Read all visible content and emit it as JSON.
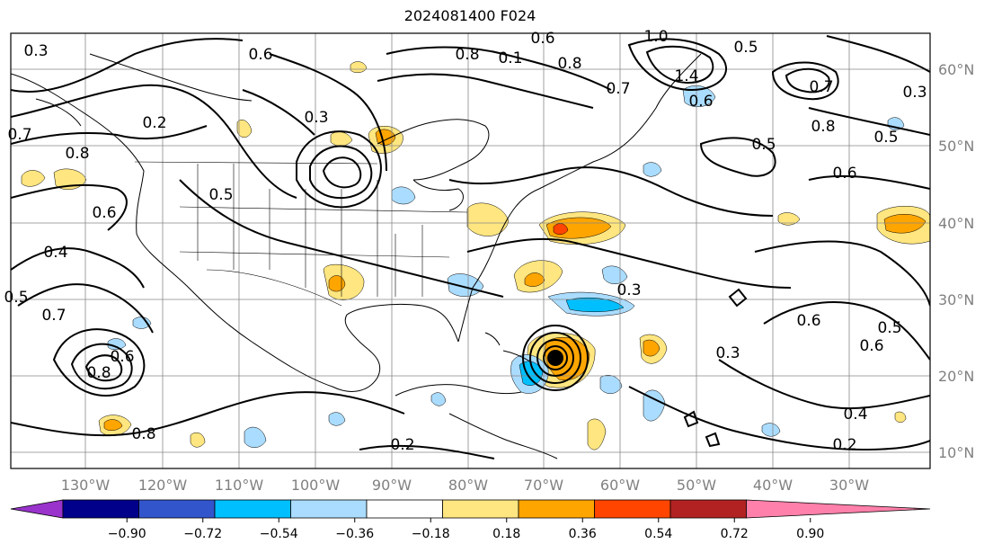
{
  "title": "2024081400 F024",
  "lon_labels": [
    "130°W",
    "120°W",
    "110°W",
    "100°W",
    "90°W",
    "80°W",
    "70°W",
    "60°W",
    "50°W",
    "40°W",
    "30°W"
  ],
  "lat_labels": [
    "60°N",
    "50°N",
    "40°N",
    "30°N",
    "20°N",
    "10°N"
  ],
  "contour_labels": [
    "0.3",
    "0.7",
    "0.8",
    "0.2",
    "0.6",
    "0.4",
    "0.5",
    "0.7",
    "0.8",
    "0.6",
    "0.8",
    "0.6",
    "0.5",
    "0.3",
    "0.8",
    "0.6",
    "0.1",
    "0.8",
    "0.7",
    "1.4",
    "0.6",
    "1.0",
    "0.5",
    "0.7",
    "0.8",
    "0.5",
    "0.6",
    "0.5",
    "0.3",
    "0.6",
    "0.3",
    "0.4",
    "0.2",
    "0.2",
    "0.3",
    "0.6",
    "0.5"
  ],
  "colorbar": {
    "ticks": [
      "−0.90",
      "−0.72",
      "−0.54",
      "−0.36",
      "−0.18",
      "0.18",
      "0.36",
      "0.54",
      "0.72",
      "0.90"
    ],
    "colors": [
      "#9933cc",
      "#00008b",
      "#3355cc",
      "#00bfff",
      "#aadcff",
      "#ffffff",
      "#ffe680",
      "#ffa500",
      "#ff4500",
      "#b22222",
      "#ff80aa"
    ]
  },
  "fill_colors": {
    "light_yellow": "#ffe680",
    "orange": "#ffa500",
    "red_orange": "#ff4500",
    "light_blue": "#aadcff",
    "blue": "#00bfff"
  }
}
